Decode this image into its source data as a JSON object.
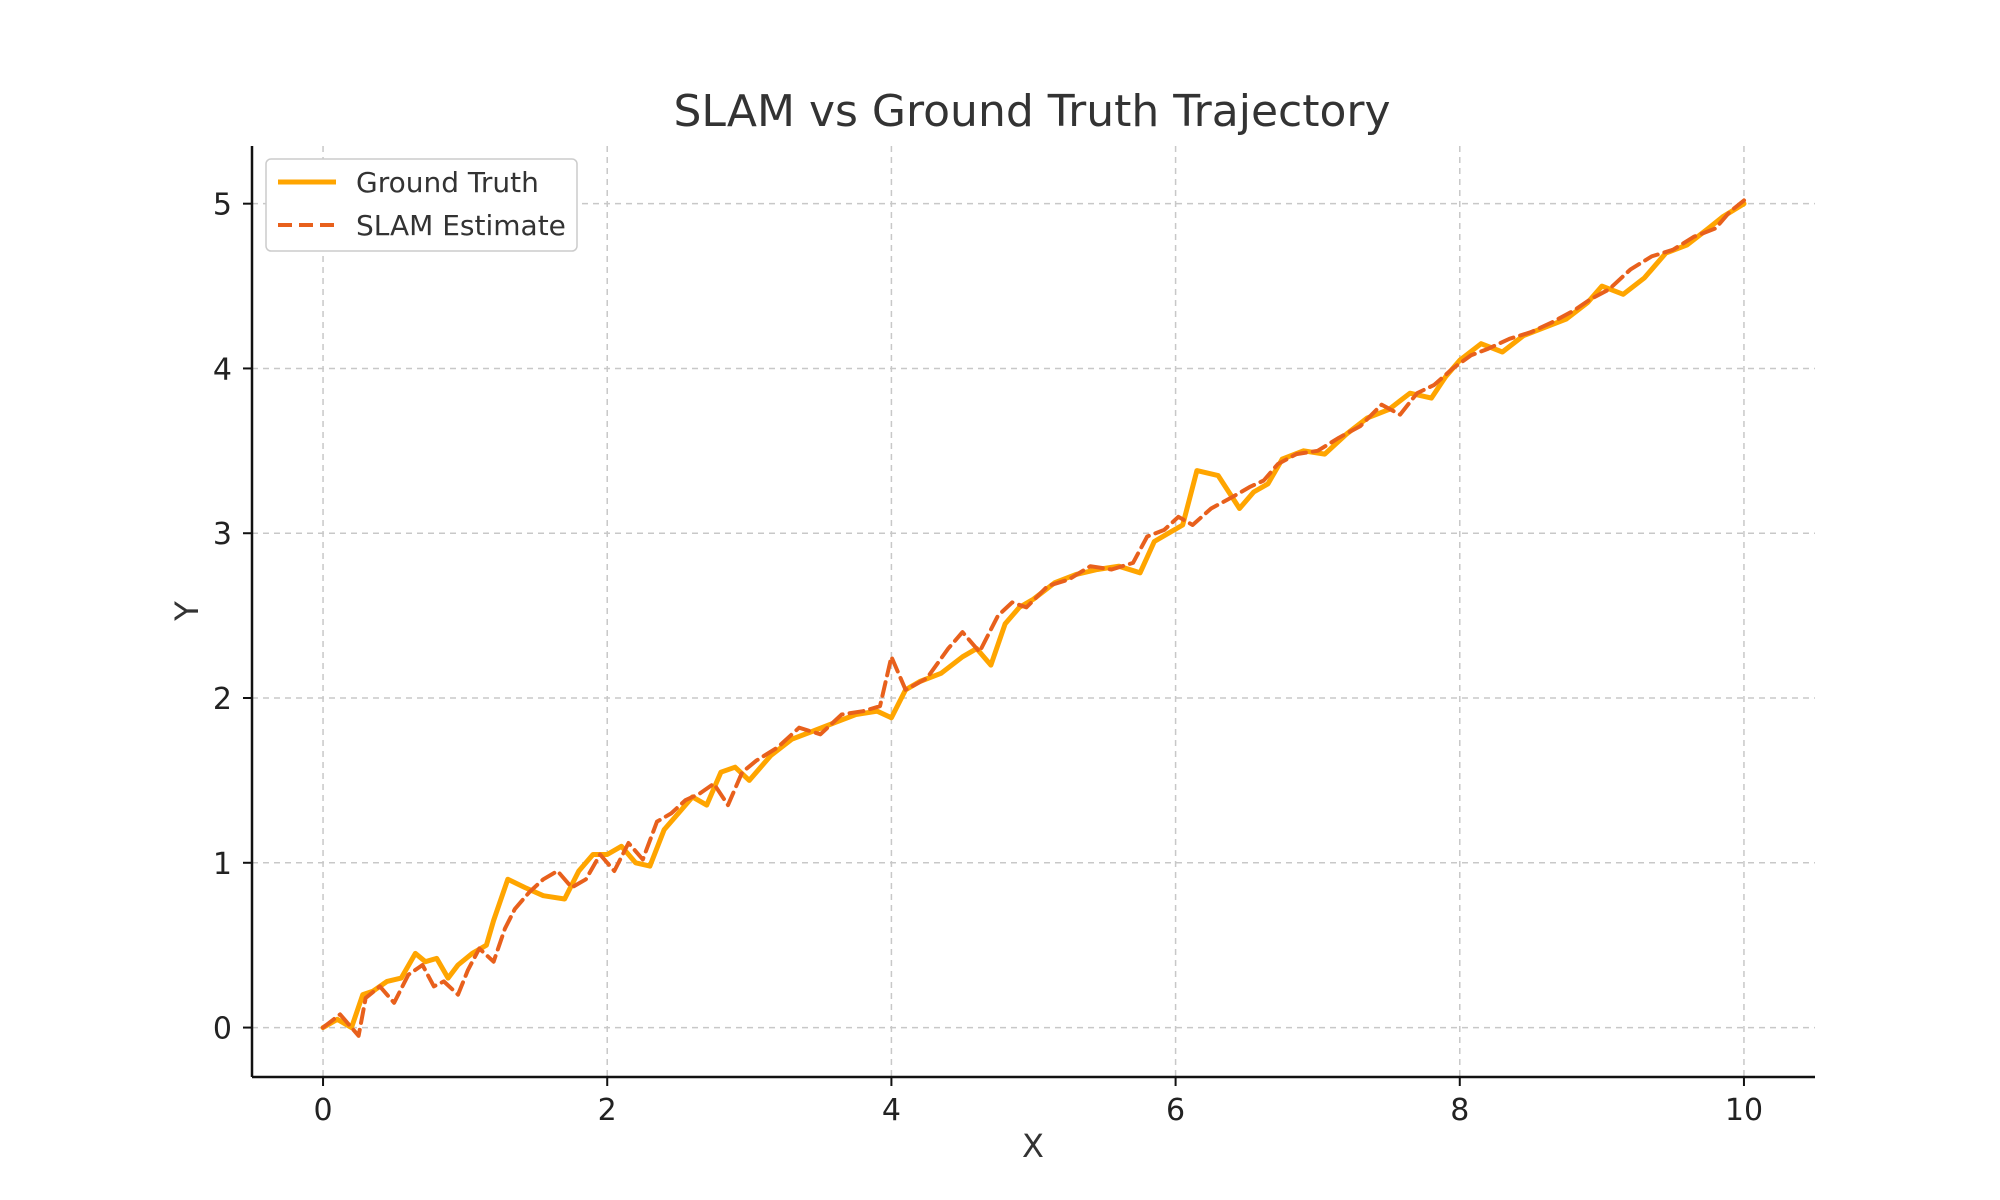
{
  "chart_data": {
    "type": "line",
    "title": "SLAM vs Ground Truth Trajectory",
    "xlabel": "X",
    "ylabel": "Y",
    "xlim": [
      -0.5,
      10.5
    ],
    "ylim": [
      -0.3,
      5.35
    ],
    "xticks": [
      "0",
      "2",
      "4",
      "6",
      "8",
      "10"
    ],
    "yticks": [
      "0",
      "1",
      "2",
      "3",
      "4",
      "5"
    ],
    "grid": true,
    "legend_position": "top-left",
    "series": [
      {
        "name": "Ground Truth",
        "color": "#FFA500",
        "style": "solid",
        "x": [
          0.0,
          0.1,
          0.2,
          0.28,
          0.35,
          0.45,
          0.55,
          0.65,
          0.72,
          0.8,
          0.88,
          0.95,
          1.05,
          1.15,
          1.2,
          1.3,
          1.42,
          1.55,
          1.7,
          1.8,
          1.9,
          2.0,
          2.1,
          2.2,
          2.3,
          2.4,
          2.5,
          2.6,
          2.7,
          2.8,
          2.9,
          3.0,
          3.15,
          3.3,
          3.45,
          3.6,
          3.75,
          3.9,
          4.0,
          4.1,
          4.2,
          4.35,
          4.5,
          4.6,
          4.7,
          4.8,
          4.9,
          5.0,
          5.15,
          5.3,
          5.45,
          5.6,
          5.75,
          5.85,
          5.95,
          6.05,
          6.15,
          6.3,
          6.45,
          6.55,
          6.65,
          6.75,
          6.9,
          7.05,
          7.2,
          7.35,
          7.5,
          7.65,
          7.8,
          7.9,
          8.0,
          8.15,
          8.3,
          8.45,
          8.6,
          8.75,
          8.9,
          9.0,
          9.15,
          9.3,
          9.45,
          9.6,
          9.75,
          9.85,
          10.0
        ],
        "y": [
          0.0,
          0.05,
          0.0,
          0.2,
          0.22,
          0.28,
          0.3,
          0.45,
          0.4,
          0.42,
          0.3,
          0.38,
          0.45,
          0.5,
          0.65,
          0.9,
          0.85,
          0.8,
          0.78,
          0.95,
          1.05,
          1.05,
          1.1,
          1.0,
          0.98,
          1.2,
          1.3,
          1.4,
          1.35,
          1.55,
          1.58,
          1.5,
          1.65,
          1.75,
          1.8,
          1.85,
          1.9,
          1.92,
          1.88,
          2.05,
          2.1,
          2.15,
          2.25,
          2.3,
          2.2,
          2.45,
          2.55,
          2.6,
          2.7,
          2.75,
          2.78,
          2.8,
          2.76,
          2.95,
          3.0,
          3.05,
          3.38,
          3.35,
          3.15,
          3.25,
          3.3,
          3.45,
          3.5,
          3.48,
          3.6,
          3.7,
          3.75,
          3.85,
          3.82,
          3.95,
          4.05,
          4.15,
          4.1,
          4.2,
          4.25,
          4.3,
          4.4,
          4.5,
          4.45,
          4.55,
          4.7,
          4.75,
          4.85,
          4.92,
          5.0
        ]
      },
      {
        "name": "SLAM Estimate",
        "color": "#E8601C",
        "style": "dashed",
        "x": [
          0.0,
          0.12,
          0.25,
          0.3,
          0.4,
          0.5,
          0.6,
          0.7,
          0.78,
          0.85,
          0.95,
          1.02,
          1.1,
          1.2,
          1.28,
          1.35,
          1.45,
          1.55,
          1.65,
          1.75,
          1.85,
          1.95,
          2.05,
          2.15,
          2.25,
          2.35,
          2.45,
          2.55,
          2.65,
          2.75,
          2.85,
          2.95,
          3.05,
          3.2,
          3.35,
          3.5,
          3.65,
          3.8,
          3.92,
          4.0,
          4.1,
          4.25,
          4.4,
          4.5,
          4.62,
          4.75,
          4.85,
          4.95,
          5.1,
          5.25,
          5.4,
          5.55,
          5.7,
          5.8,
          5.92,
          6.02,
          6.12,
          6.25,
          6.4,
          6.52,
          6.62,
          6.72,
          6.85,
          7.0,
          7.15,
          7.3,
          7.45,
          7.58,
          7.7,
          7.82,
          7.95,
          8.08,
          8.2,
          8.35,
          8.5,
          8.65,
          8.8,
          8.92,
          9.05,
          9.2,
          9.35,
          9.5,
          9.65,
          9.8,
          9.9,
          10.0
        ],
        "y": [
          0.0,
          0.08,
          -0.05,
          0.18,
          0.25,
          0.15,
          0.32,
          0.38,
          0.25,
          0.28,
          0.2,
          0.35,
          0.48,
          0.4,
          0.6,
          0.72,
          0.82,
          0.9,
          0.95,
          0.85,
          0.9,
          1.05,
          0.95,
          1.12,
          1.02,
          1.25,
          1.3,
          1.38,
          1.42,
          1.48,
          1.35,
          1.55,
          1.62,
          1.7,
          1.82,
          1.78,
          1.9,
          1.92,
          1.95,
          2.25,
          2.05,
          2.12,
          2.3,
          2.4,
          2.28,
          2.5,
          2.58,
          2.55,
          2.68,
          2.72,
          2.8,
          2.78,
          2.82,
          2.98,
          3.02,
          3.1,
          3.05,
          3.15,
          3.22,
          3.28,
          3.32,
          3.42,
          3.48,
          3.5,
          3.58,
          3.65,
          3.78,
          3.72,
          3.85,
          3.9,
          4.0,
          4.08,
          4.12,
          4.18,
          4.22,
          4.28,
          4.35,
          4.42,
          4.48,
          4.6,
          4.68,
          4.72,
          4.8,
          4.85,
          4.95,
          5.02
        ]
      }
    ]
  }
}
